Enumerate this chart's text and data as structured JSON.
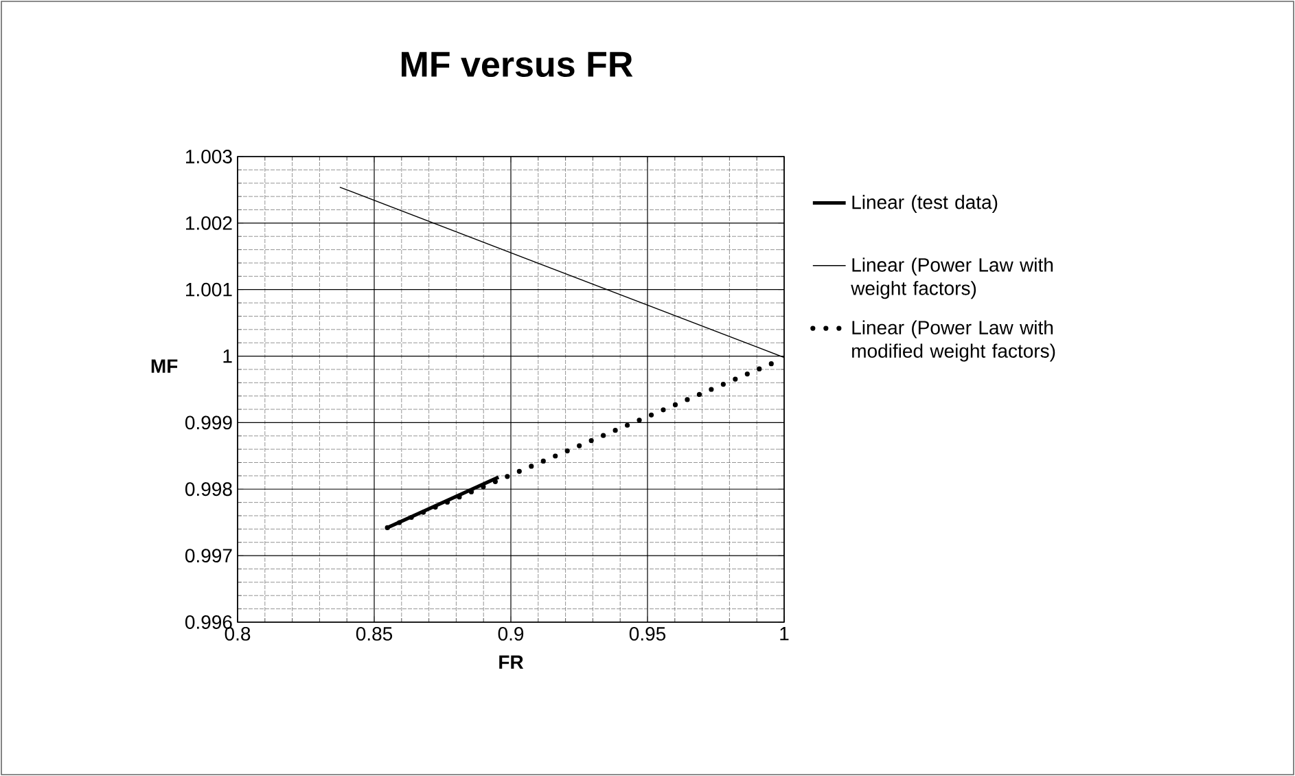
{
  "chart_data": {
    "type": "line",
    "title": "MF versus FR",
    "xlabel": "FR",
    "ylabel": "MF",
    "xlim": [
      0.8,
      1
    ],
    "xticks": [
      0.8,
      0.85,
      0.9,
      0.95,
      1
    ],
    "ylim": [
      0.996,
      1.003
    ],
    "yticks": [
      0.996,
      0.997,
      0.998,
      0.999,
      1,
      1.001,
      1.002,
      1.003
    ],
    "grid": true,
    "legend": "right",
    "marker": "none",
    "series": [
      {
        "name": "Linear (test data)",
        "color": "#000000",
        "line_style": "solid",
        "x": [
          0.8548,
          0.8955
        ],
        "values": [
          0.99742,
          0.99818
        ]
      },
      {
        "name": "Linear (Power Law with weight factors)",
        "color": "#000000",
        "line_style": "solid",
        "x": [
          0.8374,
          1.0
        ],
        "values": [
          1.00254,
          0.99998
        ]
      },
      {
        "name": "Linear (Power Law with modified weight factors)",
        "color": "#000000",
        "line_style": "dotted",
        "x": [
          0.8548,
          0.999
        ],
        "values": [
          0.99742,
          0.99995
        ]
      }
    ]
  }
}
